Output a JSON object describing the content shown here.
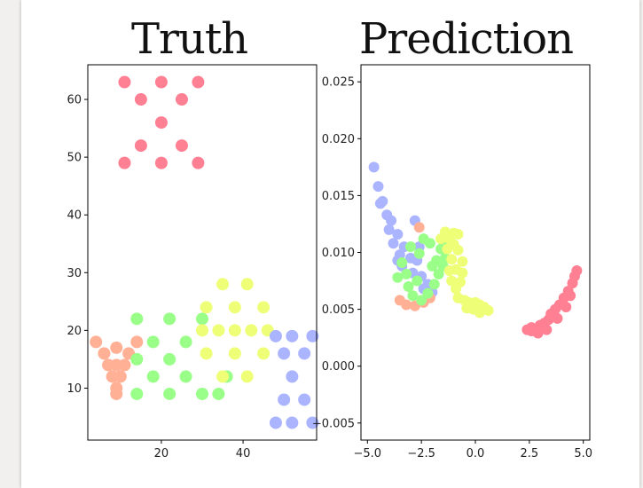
{
  "chart_data": [
    {
      "type": "scatter",
      "title": "Truth",
      "xlim": [
        2,
        58
      ],
      "ylim": [
        1,
        66
      ],
      "xticks": [
        20,
        40
      ],
      "yticks": [
        10,
        20,
        30,
        40,
        50,
        60
      ],
      "series": [
        {
          "color": "#ff7f93",
          "points": [
            [
              11,
              49
            ],
            [
              11,
              63
            ],
            [
              29,
              63
            ],
            [
              29,
              49
            ],
            [
              20,
              56
            ],
            [
              15,
              52
            ],
            [
              25,
              60
            ],
            [
              15,
              60
            ],
            [
              25,
              52
            ],
            [
              20,
              49
            ],
            [
              20,
              63
            ]
          ]
        },
        {
          "color": "#ffb095",
          "points": [
            [
              4,
              18
            ],
            [
              14,
              18
            ],
            [
              6,
              16
            ],
            [
              12,
              16
            ],
            [
              7,
              14
            ],
            [
              11,
              14
            ],
            [
              8,
              12
            ],
            [
              10,
              12
            ],
            [
              9,
              10
            ],
            [
              9,
              9
            ],
            [
              9,
              17
            ],
            [
              9,
              14
            ]
          ]
        },
        {
          "color": "#99ff88",
          "points": [
            [
              14,
              22
            ],
            [
              30,
              22
            ],
            [
              14,
              9
            ],
            [
              30,
              9
            ],
            [
              22,
              15
            ],
            [
              18,
              18
            ],
            [
              26,
              18
            ],
            [
              18,
              12
            ],
            [
              26,
              12
            ],
            [
              34,
              9
            ],
            [
              36,
              12
            ],
            [
              22,
              22
            ],
            [
              22,
              9
            ],
            [
              14,
              15
            ]
          ]
        },
        {
          "color": "#eeff77",
          "points": [
            [
              35,
              28
            ],
            [
              41,
              28
            ],
            [
              31,
              24
            ],
            [
              45,
              24
            ],
            [
              30,
              20
            ],
            [
              46,
              20
            ],
            [
              31,
              16
            ],
            [
              45,
              16
            ],
            [
              35,
              12
            ],
            [
              41,
              12
            ],
            [
              38,
              20
            ],
            [
              38,
              24
            ],
            [
              38,
              16
            ],
            [
              34,
              20
            ],
            [
              42,
              20
            ]
          ]
        },
        {
          "color": "#aab4ff",
          "points": [
            [
              48,
              19
            ],
            [
              57,
              19
            ],
            [
              48,
              4
            ],
            [
              57,
              4
            ],
            [
              52,
              12
            ],
            [
              50,
              16
            ],
            [
              55,
              16
            ],
            [
              50,
              8
            ],
            [
              55,
              8
            ],
            [
              52,
              19
            ],
            [
              52,
              4
            ]
          ]
        }
      ]
    },
    {
      "type": "scatter",
      "title": "Prediction",
      "xlim": [
        -5.3,
        5.3
      ],
      "ylim": [
        -0.0065,
        0.0265
      ],
      "xticks": [
        -5.0,
        -2.5,
        0.0,
        2.5,
        5.0
      ],
      "xtick_labels": [
        "−5.0",
        "−2.5",
        "0.0",
        "2.5",
        "5.0"
      ],
      "yticks": [
        -0.005,
        0.0,
        0.005,
        0.01,
        0.015,
        0.02,
        0.025
      ],
      "ytick_labels": [
        "−0.005",
        "0.000",
        "0.005",
        "0.010",
        "0.015",
        "0.020",
        "0.025"
      ],
      "series": [
        {
          "color": "#aab4ff",
          "points": [
            [
              -4.7,
              0.0175
            ],
            [
              -4.5,
              0.0158
            ],
            [
              -4.3,
              0.0145
            ],
            [
              -4.4,
              0.0143
            ],
            [
              -4.1,
              0.0133
            ],
            [
              -3.9,
              0.0128
            ],
            [
              -4.0,
              0.012
            ],
            [
              -3.6,
              0.0116
            ],
            [
              -3.8,
              0.0108
            ],
            [
              -3.3,
              0.0105
            ],
            [
              -3.5,
              0.0098
            ],
            [
              -3.0,
              0.0095
            ],
            [
              -3.4,
              0.0088
            ],
            [
              -2.7,
              0.0093
            ],
            [
              -2.9,
              0.0082
            ],
            [
              -2.5,
              0.0079
            ],
            [
              -2.2,
              0.0072
            ],
            [
              -2.0,
              0.0065
            ],
            [
              -2.4,
              0.0068
            ],
            [
              -2.8,
              0.0128
            ],
            [
              -3.6,
              0.0093
            ],
            [
              -2.6,
              0.0105
            ]
          ]
        },
        {
          "color": "#ffb095",
          "points": [
            [
              -3.2,
              0.0054
            ],
            [
              -2.8,
              0.0053
            ],
            [
              -2.4,
              0.0056
            ],
            [
              -2.1,
              0.006
            ],
            [
              -3.5,
              0.0058
            ],
            [
              -2.6,
              0.0122
            ]
          ]
        },
        {
          "color": "#99ff88",
          "points": [
            [
              -3.4,
              0.0091
            ],
            [
              -3.2,
              0.0081
            ],
            [
              -3.1,
              0.007
            ],
            [
              -2.9,
              0.0062
            ],
            [
              -2.5,
              0.0058
            ],
            [
              -2.2,
              0.0064
            ],
            [
              -1.9,
              0.0072
            ],
            [
              -1.7,
              0.0081
            ],
            [
              -1.8,
              0.0093
            ],
            [
              -1.6,
              0.0103
            ],
            [
              -1.5,
              0.0112
            ],
            [
              -2.1,
              0.0108
            ],
            [
              -2.4,
              0.0112
            ],
            [
              -2.6,
              0.0099
            ],
            [
              -2.0,
              0.0088
            ],
            [
              -1.4,
              0.0095
            ],
            [
              -1.3,
              0.0105
            ],
            [
              -3.0,
              0.0105
            ],
            [
              -3.6,
              0.0078
            ],
            [
              -2.7,
              0.0075
            ],
            [
              -1.5,
              0.0088
            ]
          ]
        },
        {
          "color": "#eeff77",
          "points": [
            [
              -1.4,
              0.0118
            ],
            [
              -1.2,
              0.0112
            ],
            [
              -1.0,
              0.0117
            ],
            [
              -0.8,
              0.0116
            ],
            [
              -1.3,
              0.0103
            ],
            [
              -1.1,
              0.0094
            ],
            [
              -0.8,
              0.0102
            ],
            [
              -0.6,
              0.0092
            ],
            [
              -0.9,
              0.0085
            ],
            [
              -1.2,
              0.0084
            ],
            [
              -1.1,
              0.0075
            ],
            [
              -0.9,
              0.0068
            ],
            [
              -0.7,
              0.0074
            ],
            [
              -0.6,
              0.0082
            ],
            [
              -0.8,
              0.006
            ],
            [
              -0.5,
              0.0058
            ],
            [
              -0.3,
              0.0056
            ],
            [
              0.0,
              0.0056
            ],
            [
              0.2,
              0.0054
            ],
            [
              0.4,
              0.0052
            ],
            [
              0.6,
              0.0049
            ],
            [
              0.2,
              0.0047
            ],
            [
              -0.1,
              0.005
            ],
            [
              -0.4,
              0.0051
            ],
            [
              -1.6,
              0.0112
            ],
            [
              -1.0,
              0.0107
            ]
          ]
        },
        {
          "color": "#ff7f93",
          "points": [
            [
              2.4,
              0.0032
            ],
            [
              2.6,
              0.0034
            ],
            [
              2.8,
              0.0033
            ],
            [
              3.0,
              0.0036
            ],
            [
              3.2,
              0.0038
            ],
            [
              3.4,
              0.0041
            ],
            [
              3.5,
              0.0046
            ],
            [
              3.7,
              0.005
            ],
            [
              3.9,
              0.0054
            ],
            [
              4.1,
              0.006
            ],
            [
              4.3,
              0.0066
            ],
            [
              4.5,
              0.0073
            ],
            [
              4.6,
              0.0079
            ],
            [
              4.7,
              0.0084
            ],
            [
              2.9,
              0.0029
            ],
            [
              3.3,
              0.0032
            ],
            [
              3.8,
              0.0042
            ],
            [
              4.2,
              0.0052
            ],
            [
              4.4,
              0.0062
            ],
            [
              2.6,
              0.0031
            ]
          ]
        }
      ]
    }
  ]
}
